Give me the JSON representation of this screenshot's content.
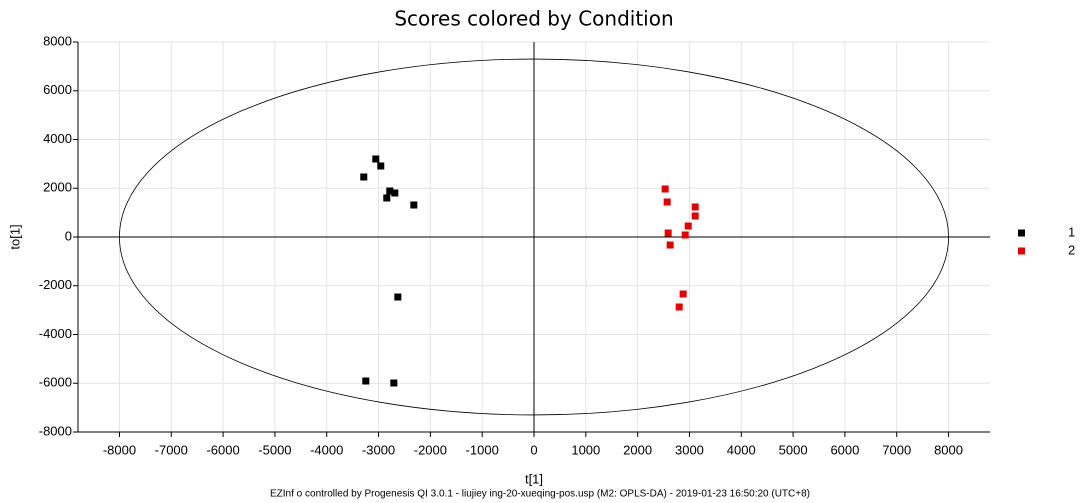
{
  "chart_data": {
    "type": "scatter",
    "title": "Scores colored by Condition",
    "x_label": "t[1]",
    "y_label": "to[1]",
    "footer": "EZInf o controlled by  Progenesis  QI  3.0.1 - liujiey ing-20-xueqing-pos.usp (M2:  OPLS-DA) - 2019-01-23 16:50:20  (UTC+8)",
    "xlim": [
      -8800,
      8800
    ],
    "ylim": [
      -8000,
      8000
    ],
    "xticks": [
      -8000,
      -7000,
      -6000,
      -5000,
      -4000,
      -3000,
      -2000,
      -1000,
      0,
      1000,
      2000,
      3000,
      4000,
      5000,
      6000,
      7000,
      8000
    ],
    "yticks": [
      -8000,
      -6000,
      -4000,
      -2000,
      0,
      2000,
      4000,
      6000,
      8000
    ],
    "grid": true,
    "ellipse_radii": [
      8000,
      7300
    ],
    "legend": "right",
    "series": [
      {
        "name": "1",
        "color": "#000000",
        "x": [
          -3053,
          -2957,
          -3285,
          -2783,
          -2841,
          -2686,
          -2319,
          -2628,
          -3246,
          -2705
        ],
        "values": [
          3200,
          2913,
          2462,
          1887,
          1600,
          1805,
          1313,
          -2462,
          -5908,
          -5990
        ]
      },
      {
        "name": "2",
        "color": "#e00000",
        "x": [
          2531,
          2570,
          2589,
          2628,
          3111,
          3111,
          2976,
          2918,
          2879,
          2802
        ],
        "values": [
          1969,
          1436,
          164,
          -328,
          1231,
          862,
          451,
          82,
          -2338,
          -2872
        ]
      }
    ]
  }
}
